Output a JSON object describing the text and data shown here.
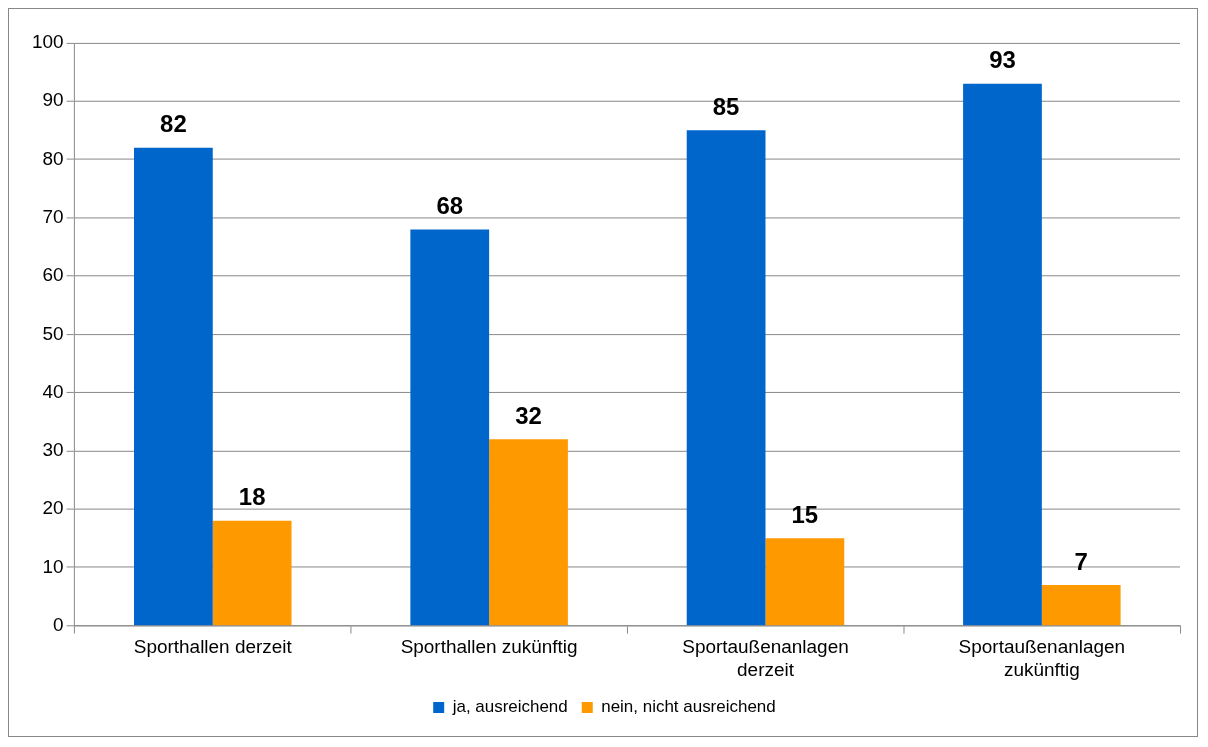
{
  "chart_data": {
    "type": "bar",
    "categories": [
      "Sporthallen derzeit",
      "Sporthallen zukünftig",
      "Sportaußenanlagen derzeit",
      "Sportaußenanlagen zukünftig"
    ],
    "series": [
      {
        "name": "ja, ausreichend",
        "color": "#0066cc",
        "values": [
          82,
          68,
          85,
          93
        ]
      },
      {
        "name": "nein, nicht ausreichend",
        "color": "#ff9900",
        "values": [
          18,
          32,
          15,
          7
        ]
      }
    ],
    "ylim": [
      0,
      100
    ],
    "yticks": [
      0,
      10,
      20,
      30,
      40,
      50,
      60,
      70,
      80,
      90,
      100
    ],
    "grid": "y",
    "legend": "bottom",
    "data_labels": true
  }
}
